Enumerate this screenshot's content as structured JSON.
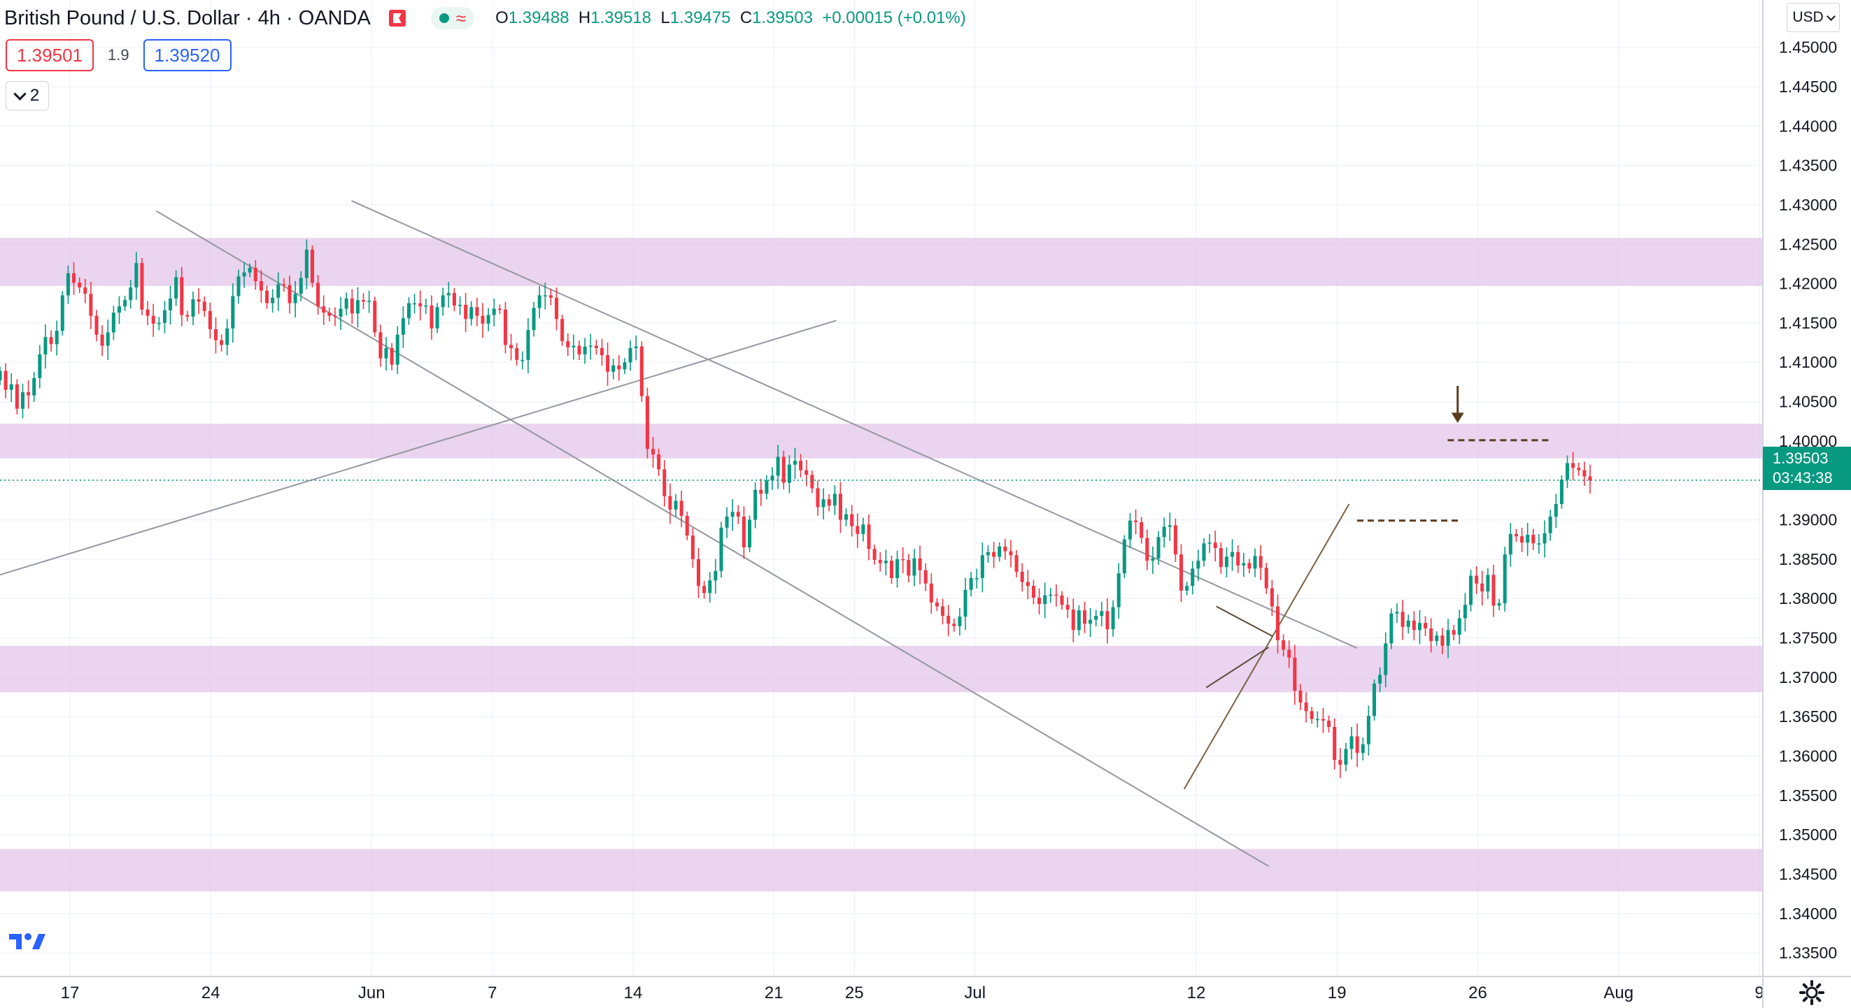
{
  "header": {
    "symbol": "British Pound / U.S. Dollar",
    "interval": "4h",
    "broker": "OANDA",
    "status_icon": "market-open-dot-icon",
    "o_label": "O",
    "o_value": "1.39488",
    "h_label": "H",
    "h_value": "1.39518",
    "l_label": "L",
    "l_value": "1.39475",
    "c_label": "C",
    "c_value": "1.39503",
    "change": "+0.00015 (+0.01%)"
  },
  "trade": {
    "sell": "1.39501",
    "spread": "1.9",
    "buy": "1.39520"
  },
  "indicators_toggle": "2",
  "currency": "USD",
  "last_price": {
    "value": "1.39503",
    "countdown": "03:43:38"
  },
  "colors": {
    "up": "#089981",
    "down": "#f23645",
    "zone": "#e3c5ea",
    "annotation": "#5c3d1e",
    "trendline": "#9598a1"
  },
  "chart_data": {
    "type": "candlestick",
    "ylim": [
      1.332,
      1.456
    ],
    "y_ticks": [
      "1.45000",
      "1.44500",
      "1.44000",
      "1.43500",
      "1.43000",
      "1.42500",
      "1.42000",
      "1.41500",
      "1.41000",
      "1.40500",
      "1.40000",
      "1.39500",
      "1.39000",
      "1.38500",
      "1.38000",
      "1.37500",
      "1.37000",
      "1.36500",
      "1.36000",
      "1.35500",
      "1.35000",
      "1.34500",
      "1.34000",
      "1.33500"
    ],
    "x_ticks": [
      {
        "label": "17",
        "date": "2021-05-17"
      },
      {
        "label": "24",
        "date": "2021-05-24"
      },
      {
        "label": "Jun",
        "date": "2021-06-01"
      },
      {
        "label": "7",
        "date": "2021-06-07"
      },
      {
        "label": "14",
        "date": "2021-06-14"
      },
      {
        "label": "21",
        "date": "2021-06-21"
      },
      {
        "label": "25",
        "date": "2021-06-25"
      },
      {
        "label": "Jul",
        "date": "2021-07-01"
      },
      {
        "label": "12",
        "date": "2021-07-12"
      },
      {
        "label": "19",
        "date": "2021-07-19"
      },
      {
        "label": "26",
        "date": "2021-07-26"
      },
      {
        "label": "Aug",
        "date": "2021-08-02"
      },
      {
        "label": "9",
        "date": "2021-08-09"
      }
    ],
    "zones": [
      [
        1.4197,
        1.4258
      ],
      [
        1.3978,
        1.4022
      ],
      [
        1.3681,
        1.374
      ],
      [
        1.3428,
        1.3482
      ]
    ],
    "series": [
      {
        "closes": [
          1.4089,
          1.4065,
          1.4072,
          1.4041,
          1.4062,
          1.4058,
          1.408,
          1.411,
          1.4132,
          1.4123,
          1.414,
          1.4185,
          1.4213,
          1.4201,
          1.4195,
          1.4187,
          1.4159,
          1.4135,
          1.4121,
          1.4138,
          1.4163,
          1.4171,
          1.4179,
          1.4195,
          1.4226,
          1.4167,
          1.4159,
          1.4149,
          1.415,
          1.4166,
          1.4181,
          1.4208,
          1.416,
          1.4158,
          1.418,
          1.4177,
          1.4165,
          1.4142,
          1.4128,
          1.4122,
          1.4143,
          1.4184,
          1.4209,
          1.4214,
          1.422,
          1.4203,
          1.4191,
          1.4175,
          1.4182,
          1.4199,
          1.4198,
          1.4175,
          1.4187,
          1.4207,
          1.4243,
          1.4201,
          1.4171,
          1.4163,
          1.4159,
          1.4158,
          1.4168,
          1.4181,
          1.4162,
          1.4179,
          1.4177,
          1.4178,
          1.4138,
          1.4105,
          1.4118,
          1.4097,
          1.4135,
          1.4156,
          1.4175,
          1.4175,
          1.4171,
          1.4172,
          1.4143,
          1.417,
          1.4185,
          1.4188,
          1.4172,
          1.4173,
          1.4155,
          1.417,
          1.4159,
          1.4149,
          1.416,
          1.4168,
          1.4167,
          1.4122,
          1.4118,
          1.4103,
          1.4103,
          1.4141,
          1.4169,
          1.4185,
          1.4185,
          1.4182,
          1.4155,
          1.4127,
          1.4119,
          1.4121,
          1.411,
          1.412,
          1.4121,
          1.4118,
          1.4109,
          1.4088,
          1.4096,
          1.4091,
          1.41,
          1.4118,
          1.412,
          1.4057,
          1.399,
          1.3983,
          1.3964,
          1.393,
          1.3913,
          1.3924,
          1.3905,
          1.388,
          1.385,
          1.3816,
          1.3807,
          1.3823,
          1.3835,
          1.389,
          1.3904,
          1.391,
          1.3904,
          1.3865,
          1.39,
          1.3938,
          1.3933,
          1.395,
          1.3956,
          1.398,
          1.3947,
          1.397,
          1.3975,
          1.3963,
          1.3957,
          1.394,
          1.3916,
          1.3926,
          1.3918,
          1.3933,
          1.39,
          1.3907,
          1.3892,
          1.3882,
          1.3894,
          1.3863,
          1.3849,
          1.3845,
          1.3848,
          1.3826,
          1.385,
          1.3849,
          1.3829,
          1.3851,
          1.3836,
          1.3819,
          1.3795,
          1.379,
          1.3778,
          1.3768,
          1.3765,
          1.3777,
          1.3811,
          1.3826,
          1.3826,
          1.3855,
          1.3859,
          1.3853,
          1.3866,
          1.386,
          1.3855,
          1.3834,
          1.3821,
          1.3816,
          1.3801,
          1.3793,
          1.3804,
          1.3805,
          1.3804,
          1.3792,
          1.3786,
          1.376,
          1.3785,
          1.3768,
          1.3773,
          1.3778,
          1.3784,
          1.3761,
          1.3789,
          1.3832,
          1.3875,
          1.3899,
          1.3897,
          1.3877,
          1.3848,
          1.3851,
          1.3878,
          1.3891,
          1.3893,
          1.3856,
          1.381,
          1.3816,
          1.3838,
          1.3848,
          1.387,
          1.3871,
          1.3864,
          1.384,
          1.3853,
          1.3859,
          1.3842,
          1.3845,
          1.3838,
          1.3854,
          1.3839,
          1.3813,
          1.379,
          1.3747,
          1.3735,
          1.3725,
          1.3683,
          1.3668,
          1.3657,
          1.3647,
          1.3647,
          1.3645,
          1.3637,
          1.3595,
          1.3589,
          1.3609,
          1.3625,
          1.3604,
          1.3615,
          1.3651,
          1.3692,
          1.3703,
          1.3743,
          1.3781,
          1.3783,
          1.3764,
          1.3772,
          1.376,
          1.3769,
          1.3762,
          1.3746,
          1.3753,
          1.374,
          1.376,
          1.3754,
          1.3775,
          1.3792,
          1.3829,
          1.3819,
          1.3809,
          1.383,
          1.3791,
          1.3794,
          1.3856,
          1.3882,
          1.3879,
          1.3871,
          1.3881,
          1.387,
          1.387,
          1.3883,
          1.3904,
          1.392,
          1.3951,
          1.3972,
          1.3966,
          1.3963,
          1.3955,
          1.395
        ]
      }
    ]
  }
}
